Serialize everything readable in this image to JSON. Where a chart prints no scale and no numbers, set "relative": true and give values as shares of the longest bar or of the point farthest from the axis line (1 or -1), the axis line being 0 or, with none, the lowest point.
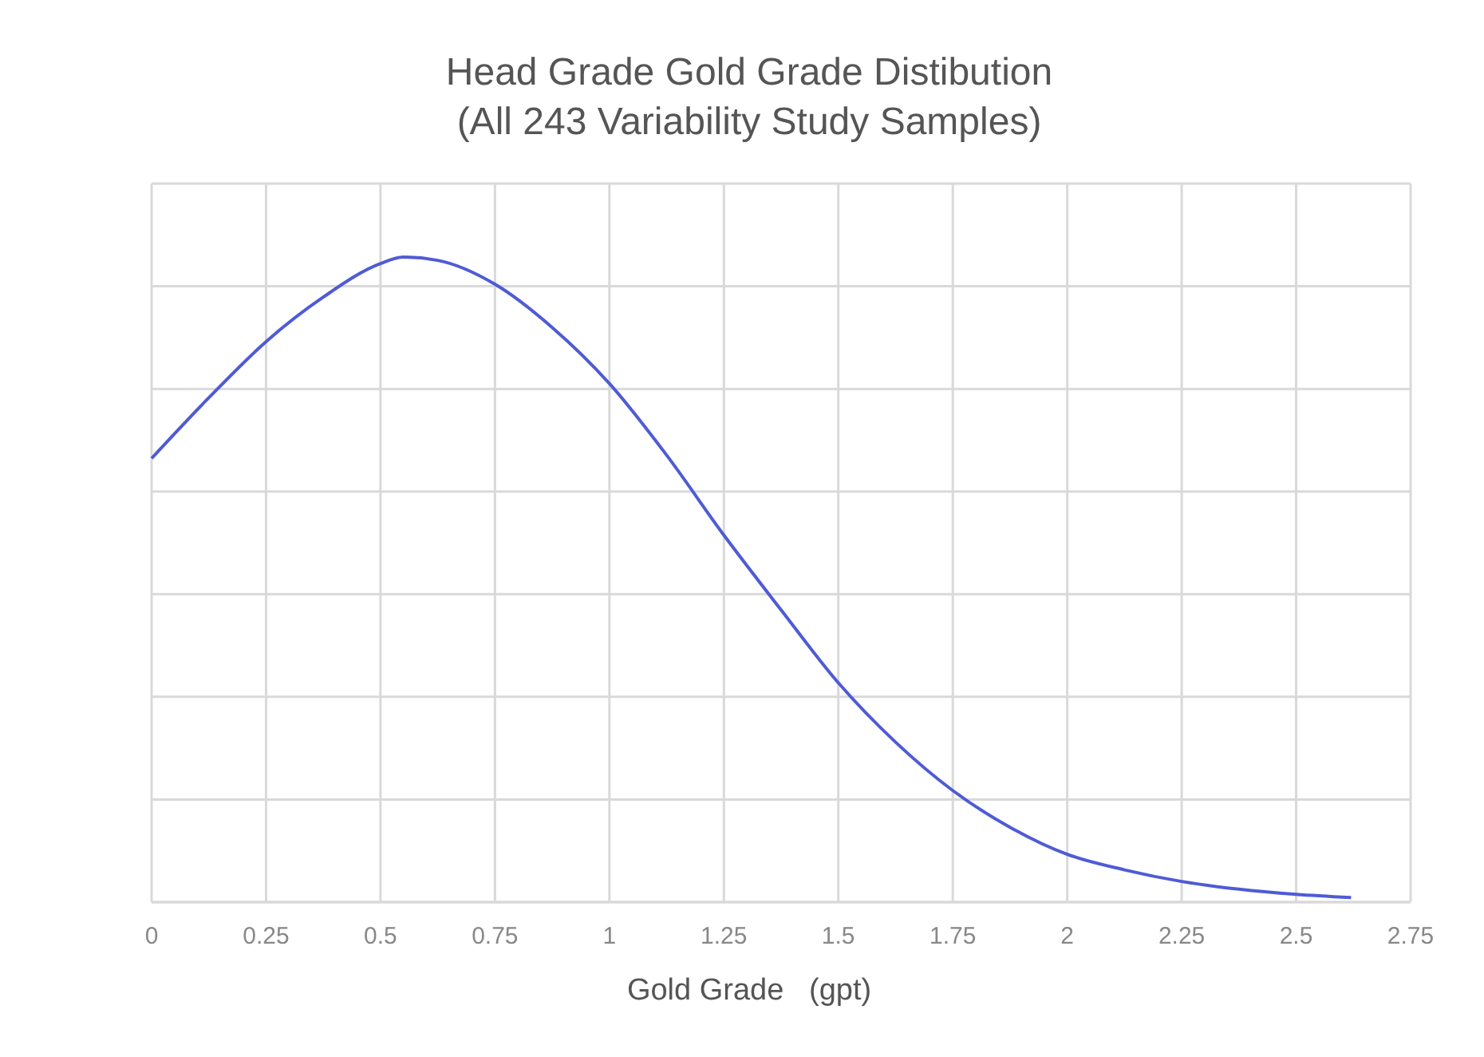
{
  "chart_data": {
    "type": "line",
    "title": "Head Grade Gold Grade Distibution\n(All 243 Variability Study Samples)",
    "xlabel": "Gold Grade   (gpt)",
    "relative": true,
    "x": [
      0,
      0.125,
      0.25,
      0.375,
      0.5,
      0.55,
      0.625,
      0.75,
      0.875,
      1,
      1.125,
      1.25,
      1.375,
      1.5,
      1.625,
      1.75,
      1.875,
      2,
      2.125,
      2.25,
      2.375,
      2.5,
      2.62
    ],
    "series": [
      {
        "color": "#4f5bd5",
        "values": [
          0.688,
          0.782,
          0.869,
          0.938,
          0.99,
          1,
          0.995,
          0.958,
          0.891,
          0.804,
          0.693,
          0.569,
          0.453,
          0.34,
          0.248,
          0.173,
          0.116,
          0.074,
          0.05,
          0.032,
          0.02,
          0.012,
          0.007
        ]
      }
    ],
    "xlim": [
      0,
      2.75
    ],
    "xticks": [
      0,
      0.25,
      0.5,
      0.75,
      1,
      1.25,
      1.5,
      1.75,
      2,
      2.25,
      2.5,
      2.75
    ],
    "grid": true,
    "marker": "none",
    "line_style": "solid"
  }
}
